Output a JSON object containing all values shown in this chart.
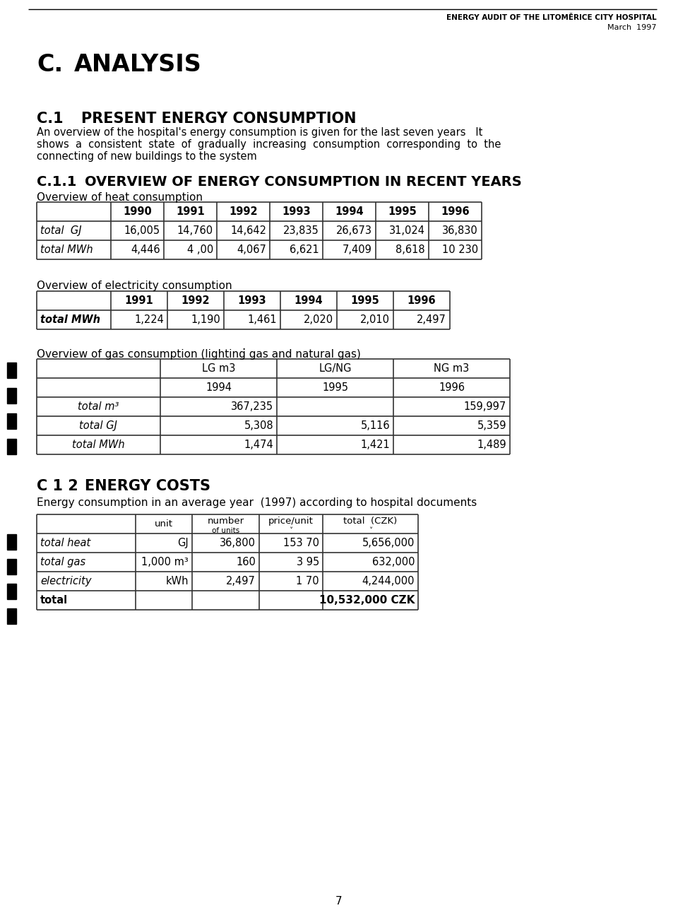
{
  "header_right_line1": "ENERGY AUDIT OF THE LITOMĚRICE CITY HOSPITAL",
  "header_right_line2": "March  1997",
  "title_C": "C.",
  "title_C_text": "ANALYSIS",
  "title_C1_num": "C.1",
  "title_C1_text": "PRESENT ENERGY CONSUMPTION",
  "para_C1_line1": "An overview of the hospital's energy consumption is given for the last seven years   It",
  "para_C1_line2": "shows  a  consistent  state  of  gradually  increasing  consumption  corresponding  to  the",
  "para_C1_line3": "connecting of new buildings to the system",
  "title_C11_num": "C.1.1",
  "title_C11_text": "OVERVIEW OF ENERGY CONSUMPTION IN RECENT YEARS",
  "heat_title": "Overview of heat consumption",
  "heat_headers": [
    "",
    "1990",
    "1991",
    "1992",
    "1993",
    "1994",
    "1995",
    "1996"
  ],
  "heat_row1": [
    "total  GJ",
    "16,005",
    "14,760",
    "14,642",
    "23,835",
    "26,673",
    "31,024",
    "36,830"
  ],
  "heat_row2": [
    "total MWh",
    "4,446",
    "4 ,00",
    "4,067",
    "6,621",
    "7,409",
    "8,618",
    "10 230"
  ],
  "elec_title": "Overview of electricity consumption",
  "elec_headers": [
    "",
    "1991",
    "1992",
    "1993",
    "1994",
    "1995",
    "1996"
  ],
  "elec_row1": [
    "total MWh",
    "1,224",
    "1,190",
    "1,461",
    "2,020",
    "2,010",
    "2,497"
  ],
  "gas_title": "Overview of gas consumption (lighting gas and natural gas)",
  "gas_h1": [
    "",
    "LG m3",
    "LG/NG",
    "NG m3"
  ],
  "gas_h2": [
    "",
    "1994",
    "1995",
    "1996"
  ],
  "gas_table": [
    [
      "total m³",
      "367,235",
      "",
      "159,997"
    ],
    [
      "total GJ",
      "5,308",
      "5,116",
      "5,359"
    ],
    [
      "total MWh",
      "1,474",
      "1,421",
      "1,489"
    ]
  ],
  "costs_title_num": "C 1 2",
  "costs_title_text": "ENERGY COSTS",
  "costs_sub": "Energy consumption in an average year  (1997) according to hospital documents",
  "costs_headers": [
    "",
    "unit",
    "number\nof units",
    "price/unit\n˅",
    "total  (CZK)\n˅"
  ],
  "costs_data": [
    [
      "total heat",
      "GJ",
      "36,800",
      "153 70",
      "5,656,000"
    ],
    [
      "total gas",
      "1,000 m³",
      "160",
      "3 95",
      "632,000"
    ],
    [
      "electricity",
      "kWh",
      "2,497",
      "1 70",
      "4,244,000"
    ],
    [
      "total",
      "",
      "",
      "",
      "10,532,000 CZK"
    ]
  ],
  "page_num": "7",
  "bg_color": "#ffffff"
}
